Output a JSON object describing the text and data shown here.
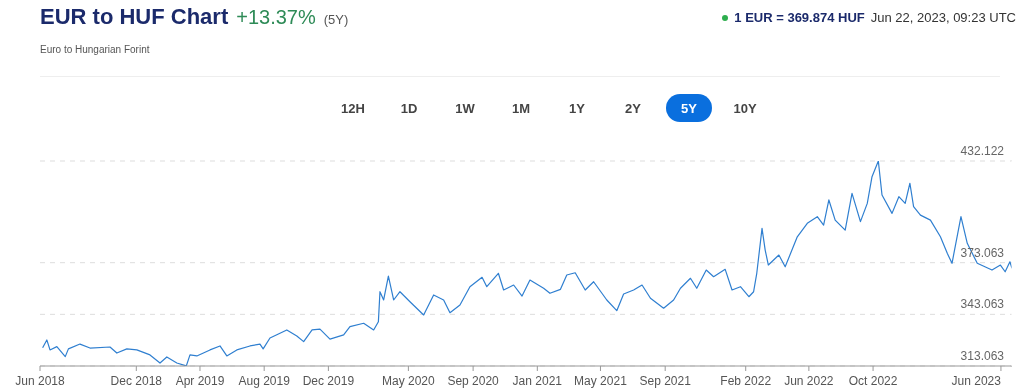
{
  "chart_data": {
    "type": "line",
    "title": "EUR to HUF Chart",
    "subtitle": "Euro to Hungarian Forint",
    "annotations": [
      "+13.37%",
      "(5Y)",
      "1 EUR = 369.874 HUF",
      "Jun 22, 2023, 09:23 UTC",
      "12H",
      "1D",
      "1W",
      "1M",
      "1Y",
      "2Y",
      "5Y",
      "10Y"
    ],
    "x": [
      "2018-06-06",
      "2018-06-14",
      "2018-06-20",
      "2018-07-03",
      "2018-07-19",
      "2018-07-25",
      "2018-08-16",
      "2018-09-04",
      "2018-10-12",
      "2018-10-25",
      "2018-11-13",
      "2018-12-02",
      "2018-12-27",
      "2019-01-15",
      "2019-01-28",
      "2019-02-16",
      "2019-03-06",
      "2019-03-13",
      "2019-03-26",
      "2019-04-20",
      "2019-05-09",
      "2019-05-22",
      "2019-06-10",
      "2019-07-05",
      "2019-07-24",
      "2019-07-30",
      "2019-08-12",
      "2019-09-13",
      "2019-10-02",
      "2019-10-15",
      "2019-10-31",
      "2019-11-15",
      "2019-12-04",
      "2019-12-30",
      "2020-01-11",
      "2020-02-06",
      "2020-02-25",
      "2020-03-05",
      "2020-03-08",
      "2020-03-15",
      "2020-03-24",
      "2020-04-03",
      "2020-04-15",
      "2020-05-04",
      "2020-05-30",
      "2020-06-18",
      "2020-07-07",
      "2020-07-19",
      "2020-08-07",
      "2020-08-26",
      "2020-09-18",
      "2020-09-27",
      "2020-10-19",
      "2020-10-29",
      "2020-11-17",
      "2020-12-03",
      "2020-12-18",
      "2021-01-13",
      "2021-01-25",
      "2021-02-14",
      "2021-02-26",
      "2021-03-14",
      "2021-04-02",
      "2021-04-18",
      "2021-05-13",
      "2021-06-01",
      "2021-06-14",
      "2021-07-03",
      "2021-07-19",
      "2021-08-04",
      "2021-08-29",
      "2021-09-17",
      "2021-09-30",
      "2021-10-19",
      "2021-10-31",
      "2021-11-18",
      "2021-12-02",
      "2021-12-24",
      "2022-01-06",
      "2022-01-22",
      "2022-02-07",
      "2022-02-16",
      "2022-02-22",
      "2022-03-04",
      "2022-03-10",
      "2022-03-16",
      "2022-04-05",
      "2022-04-17",
      "2022-05-10",
      "2022-05-29",
      "2022-06-17",
      "2022-06-29",
      "2022-07-09",
      "2022-07-21",
      "2022-08-09",
      "2022-08-22",
      "2022-09-07",
      "2022-09-20",
      "2022-09-29",
      "2022-10-11",
      "2022-10-18",
      "2022-11-06",
      "2022-11-19",
      "2022-12-01",
      "2022-12-10",
      "2022-12-17",
      "2022-12-30",
      "2023-01-18",
      "2023-02-06",
      "2023-02-19",
      "2023-02-28",
      "2023-03-17",
      "2023-03-29",
      "2023-04-17",
      "2023-05-15",
      "2023-05-31",
      "2023-06-09",
      "2023-06-18",
      "2023-06-22"
    ],
    "series": [
      {
        "color": "#2f7fd0",
        "values": [
          323.7,
          328.2,
          322.4,
          324.3,
          318.5,
          323.0,
          325.8,
          323.5,
          324.1,
          320.6,
          323.0,
          322.4,
          319.5,
          314.8,
          318.3,
          314.8,
          313.1,
          319.5,
          318.9,
          322.4,
          324.7,
          318.9,
          322.4,
          324.7,
          325.8,
          323.0,
          329.3,
          334.0,
          330.5,
          327.2,
          334.0,
          334.5,
          328.7,
          331.1,
          335.9,
          337.9,
          334.0,
          338.8,
          356.2,
          351.4,
          365.3,
          351.4,
          356.2,
          350.4,
          342.7,
          354.3,
          351.4,
          344.0,
          348.5,
          359.1,
          364.6,
          359.1,
          366.9,
          357.2,
          360.1,
          353.7,
          363.0,
          358.2,
          355.3,
          357.6,
          365.9,
          367.2,
          357.2,
          362.0,
          351.4,
          345.2,
          354.9,
          357.2,
          360.1,
          352.4,
          346.6,
          351.4,
          358.2,
          364.0,
          358.2,
          368.8,
          364.9,
          369.2,
          357.2,
          359.1,
          353.3,
          356.2,
          366.9,
          393.0,
          380.4,
          371.7,
          377.5,
          370.7,
          388.1,
          395.9,
          399.8,
          394.9,
          409.5,
          397.8,
          392.0,
          413.3,
          396.9,
          407.5,
          423.0,
          432.1,
          412.4,
          401.7,
          411.4,
          407.5,
          419.2,
          405.6,
          400.7,
          397.8,
          388.1,
          378.5,
          372.7,
          399.8,
          384.3,
          372.7,
          368.8,
          371.7,
          367.8,
          373.6,
          369.8
        ]
      }
    ],
    "xlim": [
      "2018-06-01",
      "2023-06-22"
    ],
    "xticks": [
      {
        "value": "2018-06-01",
        "label": "Jun 2018"
      },
      {
        "value": "2018-12-01",
        "label": "Dec 2018"
      },
      {
        "value": "2019-04-01",
        "label": "Apr 2019"
      },
      {
        "value": "2019-08-01",
        "label": "Aug 2019"
      },
      {
        "value": "2019-12-01",
        "label": "Dec 2019"
      },
      {
        "value": "2020-05-01",
        "label": "May 2020"
      },
      {
        "value": "2020-09-01",
        "label": "Sep 2020"
      },
      {
        "value": "2021-01-01",
        "label": "Jan 2021"
      },
      {
        "value": "2021-05-01",
        "label": "May 2021"
      },
      {
        "value": "2021-09-01",
        "label": "Sep 2021"
      },
      {
        "value": "2022-02-01",
        "label": "Feb 2022"
      },
      {
        "value": "2022-06-01",
        "label": "Jun 2022"
      },
      {
        "value": "2022-10-01",
        "label": "Oct 2022"
      },
      {
        "value": "2023-06-01",
        "label": "Jun 2023"
      }
    ],
    "ylim": [
      313.063,
      432.122
    ],
    "yticks": [
      313.063,
      343.063,
      373.063,
      432.122
    ],
    "grid": "y"
  }
}
